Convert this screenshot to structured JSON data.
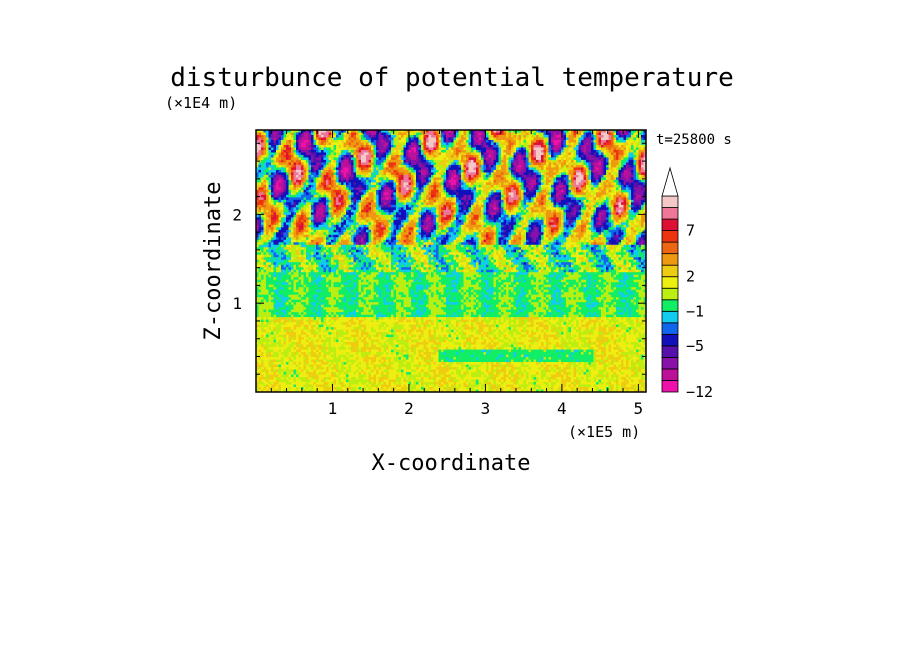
{
  "chart_data": {
    "type": "heatmap",
    "title": "disturbunce of potential temperature",
    "xlabel": "X-coordinate",
    "ylabel": "Z-coordinate",
    "x_unit": "(×1E5 m)",
    "y_unit": "(×1E4 m)",
    "time_label": "t=25800 s",
    "x_range": [
      0,
      5.1
    ],
    "y_range": [
      0,
      2.95
    ],
    "x_ticks": [
      1,
      2,
      3,
      4,
      5
    ],
    "y_ticks": [
      1,
      2
    ],
    "colorbar": {
      "levels": [
        -12,
        -10,
        -8,
        -6,
        -5,
        -3,
        -2,
        -1,
        0,
        1,
        2,
        3,
        5,
        6,
        7,
        8,
        10
      ],
      "colors": [
        "#ee11aa",
        "#bb1199",
        "#8811aa",
        "#5511aa",
        "#1111bb",
        "#1166ee",
        "#11ccee",
        "#11ee66",
        "#bbee11",
        "#eeee11",
        "#eecc11",
        "#ee9911",
        "#ee6611",
        "#ee3311",
        "#dd1133",
        "#ee7799",
        "#f5c8c8"
      ],
      "labels": [
        {
          "value": 7,
          "text": "7"
        },
        {
          "value": 2,
          "text": "2"
        },
        {
          "value": -1,
          "text": "−1"
        },
        {
          "value": -5,
          "text": "−5"
        },
        {
          "value": -12,
          "text": "−12"
        }
      ],
      "extend": "max"
    },
    "field_description": "noisy field: strong +/- wave patterns above z≈1.6E4 m, near-zero band at z≈1.1E4 m, weak positive values below"
  }
}
